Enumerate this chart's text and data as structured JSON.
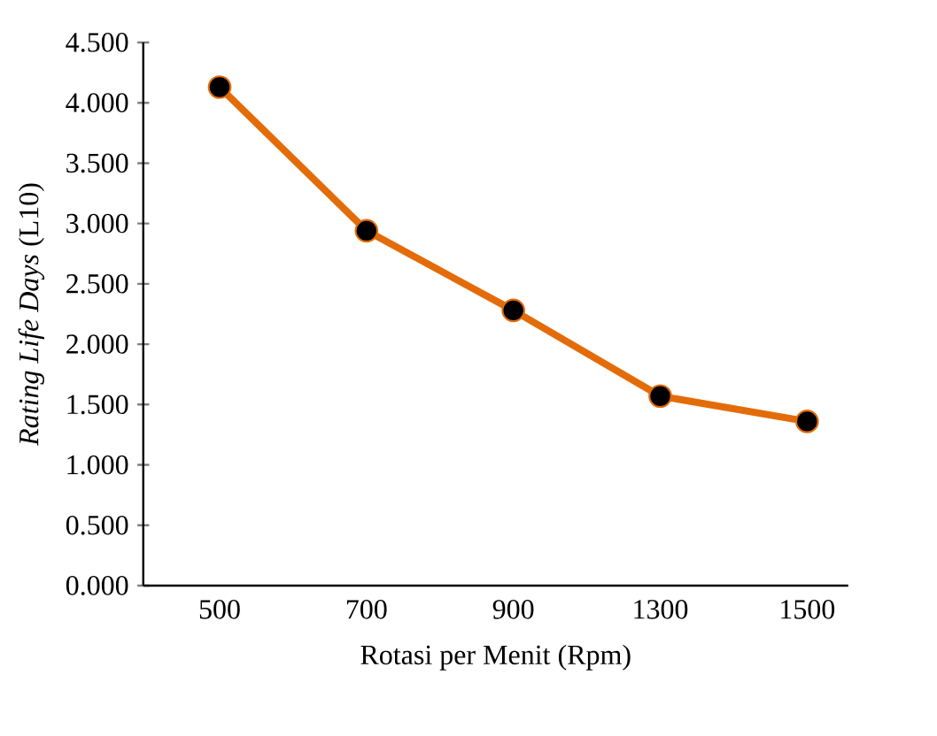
{
  "chart_data": {
    "type": "line",
    "xlabel": "Rotasi per Menit (Rpm)",
    "ylabel": "*Rating Life Days* (L10)",
    "categories": [
      "500",
      "700",
      "900",
      "1300",
      "1500"
    ],
    "series": [
      {
        "color": "#e36c09",
        "values": [
          4.13,
          2.94,
          2.28,
          1.57,
          1.36
        ]
      }
    ],
    "ylim": [
      0,
      4.5
    ],
    "yticks": [
      {
        "value": 0,
        "label": "0.000"
      },
      {
        "value": 0.5,
        "label": "0.500"
      },
      {
        "value": 1,
        "label": "1.000"
      },
      {
        "value": 1.5,
        "label": "1.500"
      },
      {
        "value": 2,
        "label": "2.000"
      },
      {
        "value": 2.5,
        "label": "2.500"
      },
      {
        "value": 3,
        "label": "3.000"
      },
      {
        "value": 3.5,
        "label": "3.500"
      },
      {
        "value": 4,
        "label": "4.000"
      },
      {
        "value": 4.5,
        "label": "4.500"
      }
    ],
    "marker": "circle",
    "line_style": "solid",
    "grid": false
  }
}
